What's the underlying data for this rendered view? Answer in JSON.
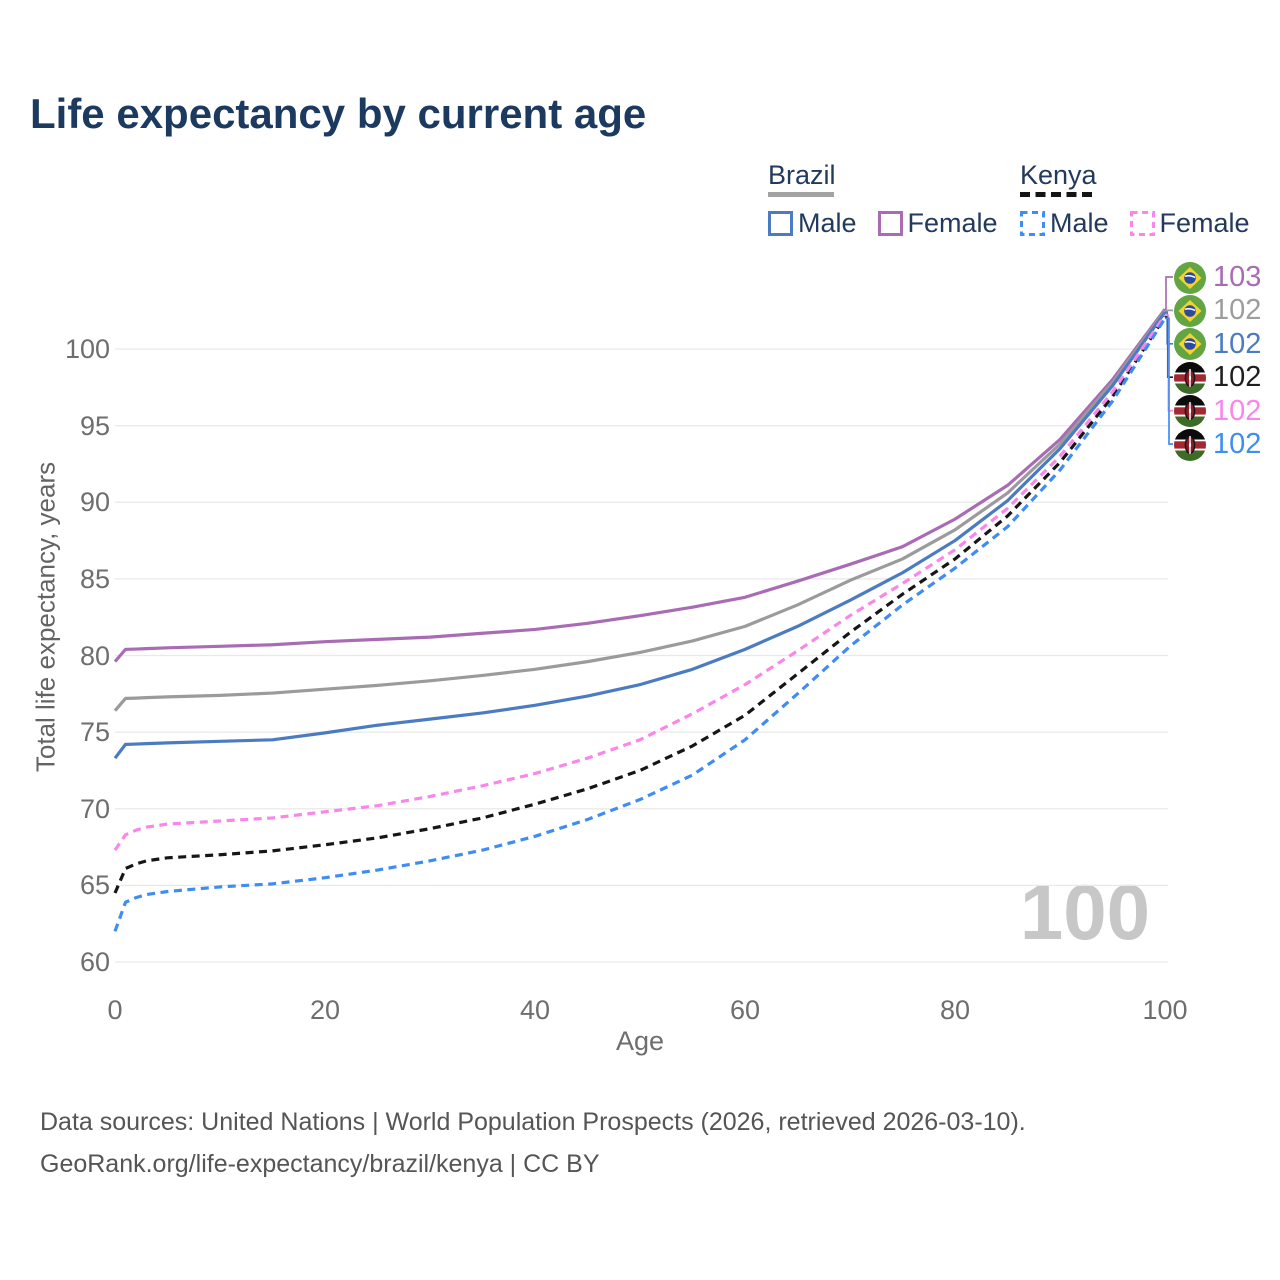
{
  "title": "Life expectancy by current age",
  "watermark_age": "100",
  "legend": {
    "brazil": {
      "label": "Brazil",
      "male": "Male",
      "female": "Female"
    },
    "kenya": {
      "label": "Kenya",
      "male": "Male",
      "female": "Female"
    }
  },
  "axes": {
    "x_label": "Age",
    "y_label": "Total life expectancy, years",
    "x_ticks": [
      0,
      20,
      40,
      60,
      80,
      100
    ],
    "y_ticks": [
      60,
      65,
      70,
      75,
      80,
      85,
      90,
      95,
      100
    ]
  },
  "colors": {
    "brazil_female": "#a96cb4",
    "brazil_both": "#9b9b9b",
    "brazil_male": "#4b7bc1",
    "kenya_both": "#161616",
    "kenya_female": "#fb86e9",
    "kenya_male": "#3f8df2",
    "gridline": "#e9e9e9",
    "title_text": "#1c3a60",
    "axis_text": "#6e6e6e"
  },
  "chart_data": {
    "type": "line",
    "title": "Life expectancy by current age",
    "xlabel": "Age",
    "ylabel": "Total life expectancy, years",
    "xlim": [
      0,
      100
    ],
    "ylim": [
      60,
      103
    ],
    "grid": "horizontal-only",
    "legend_position": "top-right",
    "x": [
      0,
      1,
      2,
      3,
      5,
      10,
      15,
      20,
      25,
      30,
      35,
      40,
      45,
      50,
      55,
      60,
      65,
      70,
      75,
      80,
      85,
      90,
      95,
      100
    ],
    "series": [
      {
        "name": "Brazil Female",
        "country": "Brazil",
        "sex": "Female",
        "style": "solid",
        "color": "#a96cb4",
        "end_label": "103",
        "values": [
          79.6,
          80.4,
          80.42,
          80.45,
          80.5,
          80.6,
          80.7,
          80.9,
          81.05,
          81.2,
          81.45,
          81.7,
          82.1,
          82.6,
          83.15,
          83.8,
          84.85,
          85.95,
          87.1,
          88.9,
          91.1,
          94.1,
          98.0,
          102.6
        ]
      },
      {
        "name": "Brazil",
        "country": "Brazil",
        "sex": "Both",
        "style": "solid",
        "color": "#9b9b9b",
        "end_label": "102",
        "values": [
          76.4,
          77.2,
          77.22,
          77.25,
          77.3,
          77.4,
          77.55,
          77.8,
          78.05,
          78.35,
          78.7,
          79.1,
          79.6,
          80.2,
          80.95,
          81.9,
          83.3,
          84.9,
          86.3,
          88.2,
          90.6,
          93.8,
          97.8,
          102.5
        ]
      },
      {
        "name": "Brazil Male",
        "country": "Brazil",
        "sex": "Male",
        "style": "solid",
        "color": "#4b7bc1",
        "end_label": "102",
        "values": [
          73.3,
          74.2,
          74.22,
          74.25,
          74.3,
          74.4,
          74.5,
          74.95,
          75.45,
          75.85,
          76.25,
          76.75,
          77.35,
          78.1,
          79.1,
          80.4,
          81.9,
          83.6,
          85.4,
          87.5,
          90.1,
          93.5,
          97.6,
          102.4
        ]
      },
      {
        "name": "Kenya",
        "country": "Kenya",
        "sex": "Both",
        "style": "dashed",
        "color": "#161616",
        "end_label": "102",
        "values": [
          64.5,
          66.1,
          66.4,
          66.6,
          66.8,
          67.0,
          67.25,
          67.65,
          68.1,
          68.7,
          69.4,
          70.3,
          71.3,
          72.5,
          74.1,
          76.1,
          78.8,
          81.5,
          84.0,
          86.3,
          89.1,
          92.6,
          96.9,
          102.1
        ]
      },
      {
        "name": "Kenya Female",
        "country": "Kenya",
        "sex": "Female",
        "style": "dashed",
        "color": "#fb86e9",
        "end_label": "102",
        "values": [
          67.3,
          68.3,
          68.6,
          68.8,
          69.0,
          69.2,
          69.4,
          69.8,
          70.2,
          70.8,
          71.5,
          72.3,
          73.3,
          74.5,
          76.2,
          78.1,
          80.3,
          82.6,
          84.7,
          86.9,
          89.6,
          93.0,
          97.2,
          102.2
        ]
      },
      {
        "name": "Kenya Male",
        "country": "Kenya",
        "sex": "Male",
        "style": "dashed",
        "color": "#3f8df2",
        "end_label": "102",
        "values": [
          62.0,
          63.9,
          64.2,
          64.4,
          64.6,
          64.9,
          65.1,
          65.5,
          66.0,
          66.6,
          67.3,
          68.2,
          69.3,
          70.6,
          72.2,
          74.5,
          77.5,
          80.6,
          83.3,
          85.7,
          88.4,
          92.1,
          96.6,
          102.0
        ]
      }
    ]
  },
  "end_labels": [
    {
      "flag": "brazil",
      "value": "103",
      "color": "#a96cb4"
    },
    {
      "flag": "brazil",
      "value": "102",
      "color": "#9e9e9e"
    },
    {
      "flag": "brazil",
      "value": "102",
      "color": "#4b7bc1"
    },
    {
      "flag": "kenya",
      "value": "102",
      "color": "#1f1f1f"
    },
    {
      "flag": "kenya",
      "value": "102",
      "color": "#fb86e9"
    },
    {
      "flag": "kenya",
      "value": "102",
      "color": "#3f8df2"
    }
  ],
  "footer": {
    "line1": "Data sources: United Nations | World Population Prospects (2026, retrieved 2026-03-10).",
    "line2": "GeoRank.org/life-expectancy/brazil/kenya | CC BY"
  }
}
